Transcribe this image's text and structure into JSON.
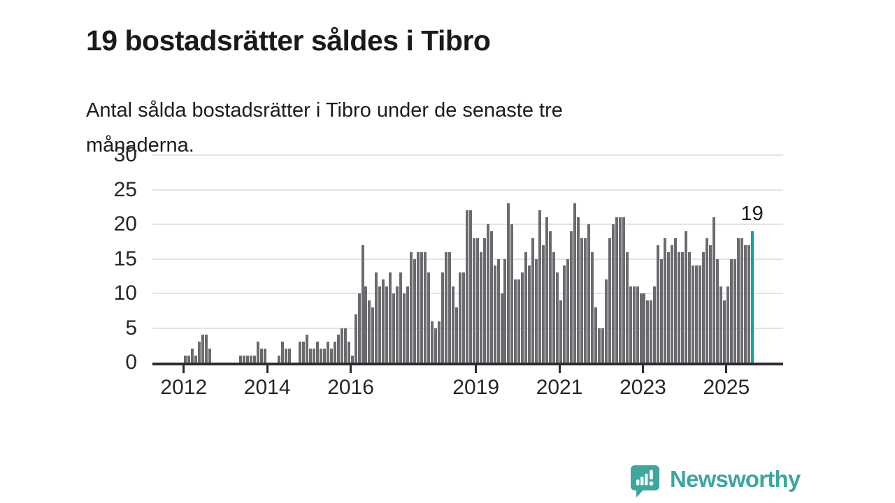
{
  "title": "19 bostadsrätter såldes i Tibro",
  "subtitle": "Antal sålda bostadsrätter i Tibro under de senaste tre\nmånaderna.",
  "annotation": {
    "label": "19"
  },
  "logo": {
    "text": "Newsworthy"
  },
  "colors": {
    "bar": "#6b6b6f",
    "highlight": "#0aa69f",
    "logo_teal": "#3ca69f",
    "grid": "#e3e3e3",
    "axis": "#2d2d2d",
    "text": "#1a1a1a"
  },
  "chart_data": {
    "type": "bar",
    "title": "19 bostadsrätter såldes i Tibro",
    "subtitle": "Antal sålda bostadsrätter i Tibro under de senaste tre månaderna.",
    "xlabel": "",
    "ylabel": "",
    "ylim": [
      0,
      30
    ],
    "grid": "horizontal",
    "start_month": "2011-04",
    "frequency": "monthly",
    "yticks": [
      0,
      5,
      10,
      15,
      20,
      25,
      30
    ],
    "xtick_years": [
      "2012",
      "2014",
      "2016",
      "2019",
      "2021",
      "2023",
      "2025"
    ],
    "highlight_last": true,
    "last_value_label": "19",
    "values": [
      0,
      0,
      0,
      0,
      0,
      0,
      0,
      0,
      0,
      1,
      1,
      2,
      1,
      3,
      4,
      4,
      2,
      0,
      0,
      0,
      0,
      0,
      0,
      0,
      0,
      1,
      1,
      1,
      1,
      1,
      3,
      2,
      2,
      0,
      0,
      0,
      1,
      3,
      2,
      2,
      0,
      0,
      3,
      3,
      4,
      2,
      2,
      3,
      2,
      2,
      3,
      2,
      3,
      4,
      5,
      5,
      3,
      1,
      7,
      10,
      17,
      11,
      9,
      8,
      13,
      11,
      12,
      11,
      13,
      10,
      11,
      13,
      10,
      11,
      16,
      15,
      16,
      16,
      16,
      13,
      6,
      5,
      6,
      13,
      16,
      16,
      11,
      8,
      13,
      13,
      22,
      22,
      18,
      18,
      16,
      18,
      20,
      19,
      14,
      15,
      10,
      15,
      23,
      20,
      12,
      12,
      13,
      16,
      14,
      18,
      15,
      22,
      17,
      21,
      19,
      16,
      13,
      9,
      14,
      15,
      19,
      23,
      21,
      18,
      18,
      20,
      16,
      8,
      5,
      5,
      12,
      18,
      20,
      21,
      21,
      21,
      16,
      11,
      11,
      11,
      10,
      10,
      9,
      9,
      11,
      17,
      15,
      18,
      16,
      17,
      18,
      16,
      16,
      19,
      16,
      14,
      14,
      14,
      16,
      18,
      17,
      21,
      15,
      11,
      9,
      11,
      15,
      15,
      18,
      18,
      17,
      17,
      19
    ]
  }
}
